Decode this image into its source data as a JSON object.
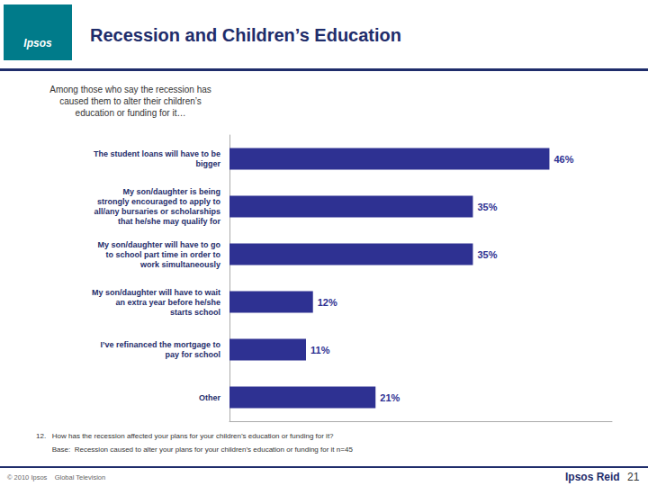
{
  "chart_data": {
    "type": "bar",
    "orientation": "horizontal",
    "title": "Recession and Children’s Education",
    "subtitle": "Among those who say the recession has\ncaused them to alter their children’s\neducation or funding for it…",
    "categories": [
      "The student loans will have to be\nbigger",
      "My son/daughter is being\nstrongly encouraged to apply to\nall/any bursaries or scholarships\nthat he/she may qualify for",
      "My son/daughter will have to go\nto school part time in order to\nwork simultaneously",
      "My son/daughter will have to wait\nan extra year before he/she\nstarts school",
      "I’ve refinanced the mortgage to\npay for school",
      "Other"
    ],
    "values": [
      46,
      35,
      35,
      12,
      11,
      21
    ],
    "value_labels": [
      "46%",
      "35%",
      "35%",
      "12%",
      "11%",
      "21%"
    ],
    "data_labels": true,
    "color": "#2E3192",
    "xlim": [
      0,
      55
    ],
    "grid": false,
    "tick_labels": "y",
    "annotations": [
      "Ipsos",
      "12.   How has the recession affected your plans for your children’s education or funding for it?",
      "        Base:  Recession caused to alter your plans for your children’s education or funding for it n=45",
      "© 2010 Ipsos    Global Television",
      "Ipsos Reid",
      "21"
    ]
  }
}
